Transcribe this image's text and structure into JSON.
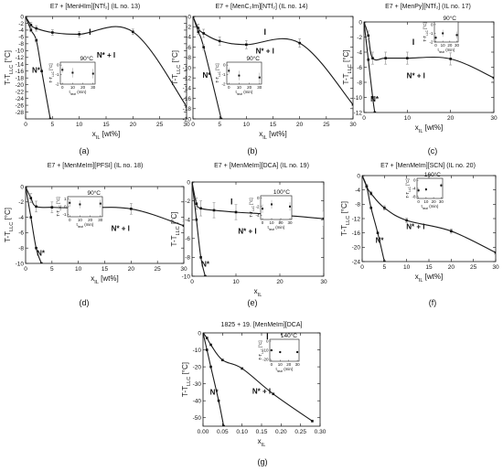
{
  "figure": {
    "background": "#ffffff",
    "ink": "#111111",
    "curve_color": "#1a1a1a",
    "errorbar_color": "#9a9a9a"
  },
  "chart_data": [
    {
      "type": "line",
      "panel": "(a)",
      "title": "E7 + [MenHIm][NTf₂] (IL no. 13)",
      "xlabel": "x_IL [wt%]",
      "ylabel": "T-T_LLC [°C]",
      "xlim": [
        0,
        30
      ],
      "ylim": [
        -30,
        0
      ],
      "xticks": [
        0,
        5,
        10,
        15,
        20,
        25,
        30
      ],
      "yticks": [
        0,
        -2,
        -4,
        -6,
        -8,
        -10,
        -12,
        -14,
        -16,
        -18,
        -20,
        -22,
        -24,
        -26,
        -28
      ],
      "regions": {
        "I": "I",
        "NI": "N* + I",
        "N": "N*"
      },
      "series": [
        {
          "role": "upper",
          "x": [
            0,
            1,
            2,
            5,
            10,
            20,
            30
          ],
          "y": [
            0,
            -2.5,
            -3.5,
            -4.7,
            -5.2,
            -4.5,
            -26.3
          ],
          "err": [
            0.5,
            0.8,
            0.8,
            0.8,
            0.8,
            0.8,
            0.5
          ]
        },
        {
          "role": "lower",
          "x": [
            0,
            1,
            2,
            3,
            4.6
          ],
          "y": [
            0,
            -4,
            -7,
            -16,
            -30
          ],
          "err": [
            0,
            0.5,
            0.5,
            0,
            0
          ]
        }
      ],
      "inset": {
        "temperature": "90°C",
        "xlabel": "t_heat (min)",
        "ylabel": "T-T_LLC [°C]",
        "x": [
          0,
          10,
          30
        ],
        "y": [
          -0.5,
          -0.8,
          -0.9
        ],
        "err": [
          0.3,
          0.5,
          0.5
        ],
        "xticks": [
          0,
          10,
          20,
          30
        ],
        "yticks": [
          0,
          -1,
          -2
        ],
        "ylim": [
          -2,
          0.3
        ]
      }
    },
    {
      "type": "line",
      "panel": "(b)",
      "title": "E7 + [MenC₂Im][NTf₂] (IL no. 14)",
      "xlabel": "x_IL [wt%]",
      "ylabel": "T-T_LLC [°C]",
      "xlim": [
        0,
        30
      ],
      "ylim": [
        -20,
        0
      ],
      "xticks": [
        0,
        5,
        10,
        15,
        20,
        25,
        30
      ],
      "yticks": [
        0,
        -2,
        -4,
        -6,
        -8,
        -10,
        -12,
        -14,
        -16,
        -18,
        -20
      ],
      "regions": {
        "I": "I",
        "NI": "N* + I",
        "N": "N*"
      },
      "series": [
        {
          "role": "upper",
          "x": [
            0,
            1,
            2,
            5,
            10,
            20,
            30
          ],
          "y": [
            0,
            -2.3,
            -3.3,
            -4.8,
            -5.5,
            -5.2,
            -17.2
          ],
          "err": [
            0.5,
            0.8,
            0.8,
            0.8,
            0.8,
            0.8,
            0.5
          ]
        },
        {
          "role": "lower",
          "x": [
            0,
            1,
            2,
            5.3
          ],
          "y": [
            0,
            -3,
            -6,
            -20
          ],
          "err": [
            0,
            0.5,
            0.5,
            0
          ]
        }
      ],
      "inset": {
        "temperature": "90°C",
        "xlabel": "t_heat (min)",
        "ylabel": "T-T_LLC [°C]",
        "x": [
          0,
          10,
          30
        ],
        "y": [
          -0.6,
          -1.1,
          -1.3
        ],
        "err": [
          0.3,
          0.5,
          0.5
        ],
        "xticks": [
          0,
          10,
          20,
          30
        ],
        "yticks": [
          0,
          -1,
          -2
        ],
        "ylim": [
          -2,
          0.3
        ]
      }
    },
    {
      "type": "line",
      "panel": "(c)",
      "title": "E7 + [MenPy][NTf₂] (IL no. 17)",
      "xlabel": "x_IL [wt%]",
      "ylabel": "T-T_LLC [°C]",
      "xlim": [
        0,
        30
      ],
      "ylim": [
        -12,
        0
      ],
      "xticks": [
        0,
        10,
        20,
        30
      ],
      "yticks": [
        0,
        -2,
        -4,
        -6,
        -8,
        -10,
        -12
      ],
      "regions": {
        "I": "I",
        "NI": "N* + I",
        "N": "N*"
      },
      "series": [
        {
          "role": "upper",
          "x": [
            0,
            1,
            2,
            5,
            10,
            20,
            30
          ],
          "y": [
            0,
            -1.8,
            -4.8,
            -4.8,
            -4.8,
            -4.9,
            -7.4
          ],
          "err": [
            0.4,
            0.6,
            0.8,
            0.8,
            0.8,
            0.8,
            0.5
          ]
        },
        {
          "role": "lower",
          "x": [
            0,
            1,
            2,
            2.5
          ],
          "y": [
            0,
            -5,
            -10,
            -12
          ],
          "err": [
            0,
            0,
            0,
            0
          ]
        }
      ],
      "inset": {
        "temperature": "90°C",
        "xlabel": "t_heat (min)",
        "ylabel": "T-T_LLC [°C]",
        "x": [
          0,
          10,
          30
        ],
        "y": [
          -1.5,
          -1.0,
          -1.2
        ],
        "err": [
          0.3,
          0.4,
          0.4
        ],
        "xticks": [
          0,
          10,
          20,
          30
        ],
        "yticks": [
          0,
          -1,
          -2
        ],
        "ylim": [
          -2,
          0.3
        ]
      }
    },
    {
      "type": "line",
      "panel": "(d)",
      "title": "E7 + [MenMeIm][PFSI] (IL no. 18)",
      "xlabel": "x_IL [wt%]",
      "ylabel": "T-T_LLC [°C]",
      "xlim": [
        0,
        30
      ],
      "ylim": [
        -10,
        0
      ],
      "xticks": [
        0,
        5,
        10,
        15,
        20,
        25,
        30
      ],
      "yticks": [
        0,
        -2,
        -4,
        -6,
        -8,
        -10
      ],
      "regions": {
        "I": "I",
        "NI": "N* + I",
        "N": "N*"
      },
      "series": [
        {
          "role": "upper",
          "x": [
            0,
            1,
            2,
            5,
            10,
            20,
            30
          ],
          "y": [
            0,
            -1.5,
            -2.6,
            -2.7,
            -2.8,
            -2.9,
            -5.1
          ],
          "err": [
            0.4,
            0.6,
            0.7,
            0.7,
            0.7,
            0.7,
            0.5
          ]
        },
        {
          "role": "lower",
          "x": [
            0,
            1,
            2,
            3
          ],
          "y": [
            0,
            -4,
            -8,
            -10
          ],
          "err": [
            0,
            0,
            0,
            0
          ]
        }
      ],
      "inset": {
        "temperature": "90°C",
        "xlabel": "t_heat (min)",
        "ylabel": "T-T_LLC [°C]",
        "x": [
          0,
          10,
          30
        ],
        "y": [
          0.5,
          0.3,
          0.4
        ],
        "err": [
          0.5,
          0.5,
          0.5
        ],
        "xticks": [
          0,
          10,
          20,
          30
        ],
        "yticks": [
          1,
          0,
          -1
        ],
        "ylim": [
          -1.3,
          1.3
        ]
      }
    },
    {
      "type": "line",
      "panel": "(e)",
      "title": "E7 + [MenMeIm][DCA] (IL no. 19)",
      "xlabel": "x_IL",
      "ylabel": "T-T_LLC [°C]",
      "xlim": [
        0,
        30
      ],
      "ylim": [
        -10,
        0
      ],
      "xticks": [
        0,
        10,
        20,
        30
      ],
      "yticks": [
        0,
        -2,
        -4,
        -6,
        -8,
        -10
      ],
      "regions": {
        "I": "I",
        "NI": "N* + I",
        "N": "N*"
      },
      "series": [
        {
          "role": "upper",
          "x": [
            0,
            1,
            2,
            5,
            10,
            20,
            30
          ],
          "y": [
            0,
            -2.3,
            -2.8,
            -3.0,
            -3.2,
            -3.5,
            -3.9
          ],
          "err": [
            0.4,
            0.6,
            0.8,
            0.8,
            0.8,
            0.8,
            0.8
          ]
        },
        {
          "role": "lower",
          "x": [
            0,
            1,
            2,
            3
          ],
          "y": [
            0,
            -4,
            -8,
            -10
          ],
          "err": [
            0,
            0,
            0,
            0
          ]
        }
      ],
      "inset": {
        "temperature": "100°C",
        "xlabel": "t_heat (min)",
        "ylabel": "T-T_LLC [°C]",
        "x": [
          0,
          10,
          30
        ],
        "y": [
          -2.5,
          -1.5,
          -2.0
        ],
        "err": [
          1.0,
          1.0,
          1.0
        ],
        "xticks": [
          0,
          10,
          20,
          30
        ],
        "yticks": [
          0,
          -2,
          -4
        ],
        "ylim": [
          -5,
          0.5
        ]
      }
    },
    {
      "type": "line",
      "panel": "(f)",
      "title": "E7 + [MenMeIm][SCN] (IL no. 20)",
      "xlabel": "x_IL [wt%]",
      "ylabel": "T-T_LLC [°C]",
      "xlim": [
        0,
        30
      ],
      "ylim": [
        -24,
        0
      ],
      "xticks": [
        0,
        5,
        10,
        15,
        20,
        25,
        30
      ],
      "yticks": [
        0,
        -4,
        -8,
        -12,
        -16,
        -20,
        -24
      ],
      "regions": {
        "I": "I",
        "NI": "N* + I",
        "N": "N*"
      },
      "series": [
        {
          "role": "upper",
          "x": [
            0,
            1,
            2,
            5,
            10,
            20,
            30
          ],
          "y": [
            0,
            -3,
            -5,
            -9,
            -12.5,
            -15.5,
            -21.5
          ],
          "err": [
            0.4,
            0.6,
            0.6,
            0.6,
            0.6,
            0.6,
            0.5
          ]
        },
        {
          "role": "lower",
          "x": [
            0,
            1,
            2,
            3.5,
            5
          ],
          "y": [
            0,
            -3,
            -9,
            -16,
            -24
          ],
          "err": [
            0,
            0,
            0,
            0,
            0
          ]
        }
      ],
      "inset": {
        "temperature": "160°C",
        "xlabel": "t_heat (min)",
        "ylabel": "T-T_LLC [°C]",
        "x": [
          0,
          10,
          30
        ],
        "y": [
          -5,
          -4.5,
          -2.5
        ],
        "err": [
          1.0,
          1.0,
          1.0
        ],
        "xticks": [
          0,
          10,
          20,
          30
        ],
        "yticks": [
          0,
          -4,
          -8
        ],
        "ylim": [
          -9,
          1
        ]
      }
    },
    {
      "type": "line",
      "panel": "(g)",
      "title": "1825 + 19. [MenMeIm][DCA]",
      "xlabel": "x_IL",
      "ylabel": "T-T_LLC [°C]",
      "xlim": [
        0,
        0.3
      ],
      "ylim": [
        -55,
        0
      ],
      "xticks": [
        0.0,
        0.05,
        0.1,
        0.15,
        0.2,
        0.25,
        0.3
      ],
      "yticks": [
        0,
        -10,
        -20,
        -30,
        -40,
        -50
      ],
      "regions": {
        "I": "I",
        "NI": "N* + I",
        "N": "N*"
      },
      "series": [
        {
          "role": "upper",
          "x": [
            0,
            0.01,
            0.02,
            0.05,
            0.1,
            0.18,
            0.28
          ],
          "y": [
            0,
            -3,
            -7,
            -16,
            -21,
            -36,
            -52
          ],
          "err": [
            0,
            0,
            0,
            0,
            0,
            0,
            0
          ]
        },
        {
          "role": "lower",
          "x": [
            0,
            0.01,
            0.02,
            0.04,
            0.053
          ],
          "y": [
            0,
            -10,
            -20,
            -40,
            -55
          ],
          "err": [
            0,
            0,
            0,
            0,
            0
          ]
        }
      ],
      "inset": {
        "temperature": "140°C",
        "xlabel": "t_heat (min)",
        "ylabel": "T-T_LLC [°C]",
        "x": [
          0,
          10,
          30
        ],
        "y": [
          -10,
          -12,
          -12
        ],
        "err": [
          1.5,
          1.5,
          1.5
        ],
        "xticks": [
          0,
          10,
          20,
          30
        ],
        "yticks": [
          0,
          -10,
          -20
        ],
        "ylim": [
          -22,
          2
        ]
      }
    }
  ]
}
